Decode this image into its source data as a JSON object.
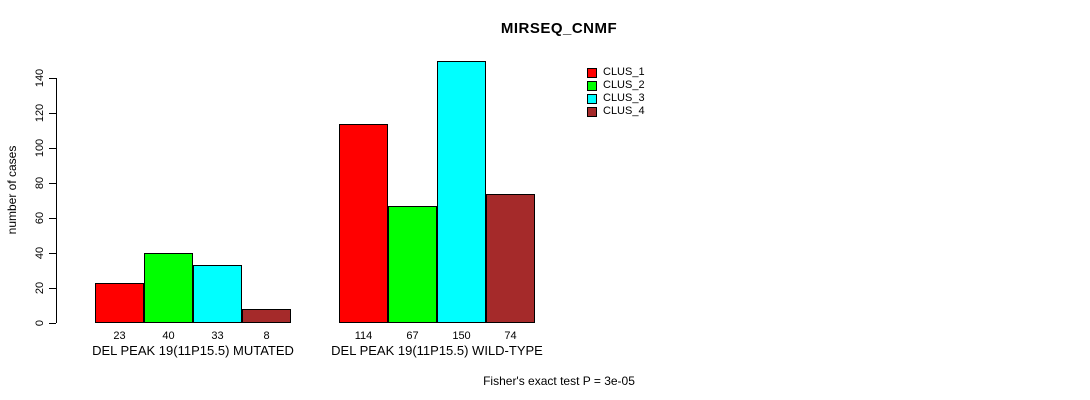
{
  "chart_data": {
    "type": "bar",
    "title": "MIRSEQ_CNMF",
    "ylabel": "number of cases",
    "xlabel": "",
    "ylim": [
      0,
      140
    ],
    "yticks": [
      0,
      20,
      40,
      60,
      80,
      100,
      120,
      140
    ],
    "grid": false,
    "legend_position": "top-right",
    "background_color": "#ffffff",
    "categories": [
      "DEL PEAK 19(11P15.5) MUTATED",
      "DEL PEAK 19(11P15.5) WILD-TYPE"
    ],
    "series": [
      {
        "name": "CLUS_1",
        "color": "#ff0000",
        "values": [
          23,
          114
        ]
      },
      {
        "name": "CLUS_2",
        "color": "#00ff00",
        "values": [
          40,
          67
        ]
      },
      {
        "name": "CLUS_3",
        "color": "#00ffff",
        "values": [
          33,
          150
        ]
      },
      {
        "name": "CLUS_4",
        "color": "#a52a2a",
        "values": [
          8,
          74
        ]
      }
    ],
    "bar_value_labels": [
      [
        "23",
        "40",
        "33",
        "8"
      ],
      [
        "114",
        "67",
        "150",
        "74"
      ]
    ],
    "annotation": "Fisher's exact test P = 3e-05"
  }
}
